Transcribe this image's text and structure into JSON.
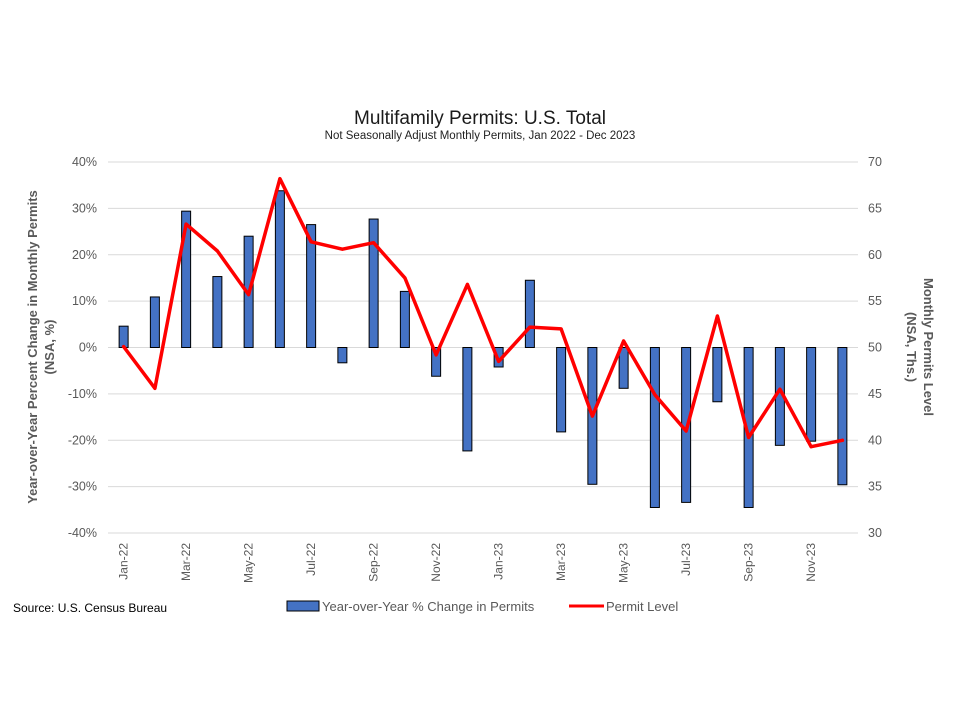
{
  "chart_data": {
    "type": "bar",
    "title": "Multifamily Permits: U.S. Total",
    "subtitle": "Not Seasonally Adjust Monthly Permits, Jan 2022 - Dec 2023",
    "y_left_label": [
      "Year-over-Year Percent Change in Monthly Permits",
      "(NSA, %)"
    ],
    "y_right_label": [
      "Monthly Permits Level",
      "(NSA, Ths.)"
    ],
    "y_left_ticks": [
      "40%",
      "30%",
      "20%",
      "10%",
      "0%",
      "-10%",
      "-20%",
      "-30%",
      "-40%"
    ],
    "y_right_ticks": [
      "70",
      "65",
      "60",
      "55",
      "50",
      "45",
      "40",
      "35",
      "30"
    ],
    "y_left_range": [
      -40,
      40
    ],
    "y_right_range": [
      30,
      70
    ],
    "x_tick_labels": [
      "Jan-22",
      "Mar-22",
      "May-22",
      "Jul-22",
      "Sep-22",
      "Nov-22",
      "Jan-23",
      "Mar-23",
      "May-23",
      "Jul-23",
      "Sep-23",
      "Nov-23"
    ],
    "x": [
      "Jan-22",
      "Feb-22",
      "Mar-22",
      "Apr-22",
      "May-22",
      "Jun-22",
      "Jul-22",
      "Aug-22",
      "Sep-22",
      "Oct-22",
      "Nov-22",
      "Dec-22",
      "Jan-23",
      "Feb-23",
      "Mar-23",
      "Apr-23",
      "May-23",
      "Jun-23",
      "Jul-23",
      "Aug-23",
      "Sep-23",
      "Oct-23",
      "Nov-23",
      "Dec-23"
    ],
    "series": [
      {
        "name": "Year-over-Year % Change in Permits",
        "type": "bar",
        "axis": "left",
        "color": "#4472C4",
        "values": [
          4.6,
          10.9,
          29.4,
          15.3,
          24.0,
          33.8,
          26.5,
          -3.3,
          27.7,
          12.1,
          -6.2,
          -22.3,
          -4.2,
          14.5,
          -18.2,
          -29.5,
          -8.8,
          -34.5,
          -33.4,
          -11.7,
          -34.5,
          -21.1,
          -20.2,
          -29.6
        ]
      },
      {
        "name": "Permit Level",
        "type": "line",
        "axis": "right",
        "color": "#FF0000",
        "values": [
          50.1,
          45.6,
          63.3,
          60.4,
          55.7,
          68.2,
          61.4,
          60.6,
          61.3,
          57.5,
          49.2,
          56.8,
          48.5,
          52.2,
          52.0,
          42.6,
          50.7,
          44.9,
          41.0,
          53.4,
          40.3,
          45.5,
          39.3,
          40.0
        ]
      }
    ],
    "grid": true,
    "legend_position": "bottom"
  },
  "source": "Source: U.S. Census Bureau"
}
